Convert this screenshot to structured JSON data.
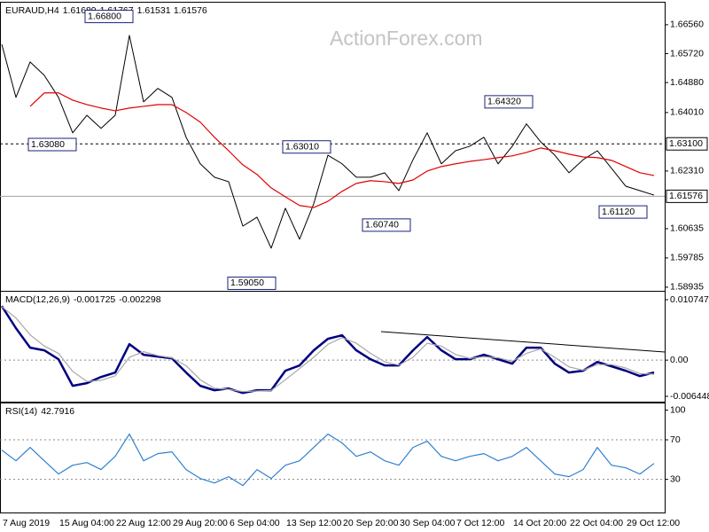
{
  "watermark": "ActionForex.com",
  "chart_data": [
    {
      "type": "line",
      "header": {
        "symbol": "EURAUD,H4",
        "ohlc": [
          1.61689,
          1.61767,
          1.61531,
          1.61576
        ]
      },
      "series": [
        {
          "name": "Price",
          "color": "#000000",
          "values": [
            1.6599,
            1.6445,
            1.6548,
            1.6509,
            1.6445,
            1.6342,
            1.6393,
            1.6355,
            1.6393,
            1.6625,
            1.6432,
            1.6471,
            1.6445,
            1.6329,
            1.6252,
            1.6213,
            1.62,
            1.6071,
            1.6097,
            1.6007,
            1.6123,
            1.6033,
            1.6136,
            1.6277,
            1.6252,
            1.6213,
            1.6213,
            1.6226,
            1.6174,
            1.6264,
            1.6342,
            1.6252,
            1.629,
            1.6303,
            1.6329,
            1.6252,
            1.6303,
            1.6368,
            1.6316,
            1.6277,
            1.6226,
            1.6264,
            1.629,
            1.6239,
            1.6187,
            1.6174,
            1.6161
          ]
        },
        {
          "name": "MA",
          "color": "#e00000",
          "values": [
            null,
            null,
            1.6419,
            1.6458,
            1.6458,
            1.6437,
            1.6424,
            1.6414,
            1.6406,
            1.6414,
            1.6419,
            1.6424,
            1.6424,
            1.6401,
            1.6373,
            1.6329,
            1.629,
            1.6249,
            1.6221,
            1.6182,
            1.6156,
            1.6131,
            1.6125,
            1.6143,
            1.6172,
            1.6195,
            1.6203,
            1.62,
            1.6195,
            1.6205,
            1.6231,
            1.6244,
            1.6252,
            1.6259,
            1.6264,
            1.627,
            1.6275,
            1.6285,
            1.6298,
            1.629,
            1.628,
            1.6272,
            1.627,
            1.6262,
            1.6244,
            1.6226,
            1.6218
          ]
        }
      ],
      "ylim": [
        1.5883,
        1.6715
      ],
      "yticks": [
        {
          "value": 1.6656,
          "label": "1.66560"
        },
        {
          "value": 1.6572,
          "label": "1.65720"
        },
        {
          "value": 1.6488,
          "label": "1.64880"
        },
        {
          "value": 1.6401,
          "label": "1.64010"
        },
        {
          "value": 1.6231,
          "label": "1.62310"
        },
        {
          "value": 1.60635,
          "label": "1.60635"
        },
        {
          "value": 1.59785,
          "label": "1.59785"
        },
        {
          "value": 1.58935,
          "label": "1.58935"
        }
      ],
      "levels": [
        {
          "value": 1.631,
          "label": "1.63100"
        }
      ],
      "last_price": 1.61576,
      "annotations": [
        {
          "value": 1.668,
          "label": "1.66800"
        },
        {
          "value": 1.6308,
          "label": "1.63080"
        },
        {
          "value": 1.6301,
          "label": "1.63010"
        },
        {
          "value": 1.6432,
          "label": "1.64320"
        },
        {
          "value": 1.6074,
          "label": "1.60740"
        },
        {
          "value": 1.6112,
          "label": "1.61120"
        },
        {
          "value": 1.5905,
          "label": "1.59050"
        }
      ]
    },
    {
      "type": "line",
      "header": {
        "symbol": "MACD(12,26,9)",
        "ohlc": [
          -0.001725,
          -0.002298
        ]
      },
      "series": [
        {
          "name": "MACD",
          "color": "#000080",
          "values": [
            0.00962,
            0.00568,
            0.00221,
            0.00174,
            0.00016,
            -0.00457,
            -0.0041,
            -0.003,
            -0.00221,
            0.00284,
            0.00095,
            0.00063,
            0.00032,
            -0.00221,
            -0.00457,
            -0.00536,
            -0.00505,
            -0.00584,
            -0.00536,
            -0.00536,
            -0.00189,
            -0.00095,
            0.00174,
            0.00379,
            0.00442,
            0.00174,
            0.00016,
            -0.00095,
            -0.00095,
            0.00174,
            0.0041,
            0.00174,
            0.00016,
            0.00016,
            0.00095,
            0.00016,
            -0.00063,
            0.00221,
            0.00221,
            -0.00063,
            -0.00221,
            -0.00189,
            -0.00032,
            -0.0011,
            -0.00189,
            -0.00284,
            -0.00221
          ]
        },
        {
          "name": "Signal",
          "color": "#a8a8a8",
          "values": [
            0.0095,
            0.0075,
            0.0045,
            0.0025,
            0.0012,
            -0.002,
            -0.0038,
            -0.0036,
            -0.0028,
            0.0005,
            0.0015,
            0.0008,
            0.0004,
            -0.001,
            -0.0035,
            -0.005,
            -0.0052,
            -0.0056,
            -0.0055,
            -0.0054,
            -0.0035,
            -0.0015,
            0.0005,
            0.0028,
            0.004,
            0.003,
            0.0012,
            -0.0003,
            -0.0009,
            0.0005,
            0.003,
            0.0025,
            0.001,
            0.0003,
            0.0006,
            0.0004,
            -0.0002,
            0.0012,
            0.002,
            0.0005,
            -0.0012,
            -0.0018,
            -0.0008,
            -0.0008,
            -0.0014,
            -0.0024,
            -0.0025
          ]
        }
      ],
      "ylim": [
        -0.00739,
        0.01185
      ],
      "yticks": [
        0.010747,
        {
          "value": 0,
          "label": "0.00"
        },
        -0.006448
      ],
      "levels": [
        0
      ]
    },
    {
      "type": "line",
      "header": {
        "symbol": "RSI(14)",
        "ohlc": [
          42.7916
        ]
      },
      "categories": [
        "7 Aug 2019",
        null,
        null,
        null,
        "15 Aug 04:00",
        null,
        null,
        null,
        "22 Aug 12:00",
        null,
        null,
        null,
        "29 Aug 20:00",
        null,
        null,
        null,
        "6 Sep 04:00",
        null,
        null,
        null,
        "13 Sep 12:00",
        null,
        null,
        null,
        "20 Sep 20:00",
        null,
        null,
        null,
        "30 Sep 04:00",
        null,
        null,
        null,
        "7 Oct 12:00",
        null,
        null,
        null,
        "14 Oct 20:00",
        null,
        null,
        null,
        "22 Oct 04:00",
        null,
        null,
        null,
        "29 Oct 12:00",
        null,
        null
      ],
      "series": [
        {
          "name": "RSI",
          "color": "#2f80d0",
          "values": [
            59.6,
            48.8,
            62.3,
            48.8,
            35.4,
            44.3,
            47,
            39.9,
            53.3,
            75.8,
            48.8,
            56,
            57.8,
            39.9,
            30.9,
            26.4,
            32.7,
            23.7,
            39.9,
            30.9,
            44.3,
            48.8,
            62.3,
            75.8,
            66.8,
            53.3,
            57.8,
            48.8,
            44.3,
            62.3,
            68.6,
            53.3,
            48.8,
            53.3,
            56,
            48.8,
            53.3,
            62.3,
            48.8,
            35.4,
            32.7,
            39.9,
            62.3,
            44.3,
            41.7,
            35.4,
            46.1
          ]
        }
      ],
      "ylim": [
        -3.5,
        105
      ],
      "yticks": [
        100,
        70,
        30
      ],
      "levels": [
        70,
        30
      ]
    }
  ]
}
